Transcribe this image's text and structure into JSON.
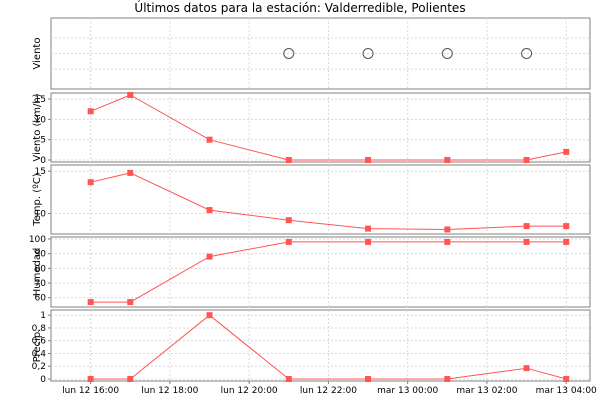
{
  "chart_data": {
    "type": "line",
    "title": "Últimos datos para la estación: Valderredible, Polientes",
    "x_categories": [
      "lun 12 16:00",
      "lun 12 18:00",
      "lun 12 20:00",
      "lun 12 22:00",
      "mar 13 00:00",
      "mar 13 02:00",
      "mar 13 04:00"
    ],
    "x_positions": [
      0,
      1,
      3,
      5,
      7,
      9,
      11,
      12
    ],
    "x_tick_positions": [
      0,
      2,
      4,
      6,
      8,
      10,
      12
    ],
    "x_tick_labels": [
      "lun 12 16:00",
      "lun 12 18:00",
      "lun 12 20:00",
      "lun 12 22:00",
      "mar 13 00:00",
      "mar 13 02:00",
      "mar 13 04:00"
    ],
    "grid": true,
    "line_color": "#ff5555",
    "panels": [
      {
        "ylabel": "Viento",
        "type": "direction",
        "marker": "circle",
        "points_x": [
          5,
          7,
          9,
          11
        ]
      },
      {
        "ylabel": "Viento (km/h)",
        "ylim": [
          0,
          16
        ],
        "yticks": [
          0,
          5,
          10,
          15
        ],
        "values": [
          12,
          16,
          5,
          0,
          0,
          0,
          0,
          2
        ]
      },
      {
        "ylabel": "Temp. (ºC)",
        "ylim": [
          7.8,
          15.5
        ],
        "yticks": [
          10,
          15
        ],
        "values": [
          13.7,
          14.8,
          10.4,
          9.2,
          8.2,
          8.1,
          8.5,
          8.5
        ]
      },
      {
        "ylabel": "Humedad",
        "ylim": [
          55,
          100
        ],
        "yticks": [
          60,
          70,
          80,
          90,
          100
        ],
        "values": [
          57,
          57,
          88,
          98,
          98,
          98,
          98,
          98
        ]
      },
      {
        "ylabel": "Precip.",
        "ylim": [
          0,
          1.05
        ],
        "yticks": [
          0,
          0.2,
          0.4,
          0.6,
          0.8,
          1
        ],
        "ytick_labels": [
          "0",
          "0,2",
          "0,4",
          "0,6",
          "0,8",
          "1"
        ],
        "values": [
          0,
          0,
          1,
          0,
          0,
          0,
          0.17,
          0
        ]
      }
    ]
  }
}
